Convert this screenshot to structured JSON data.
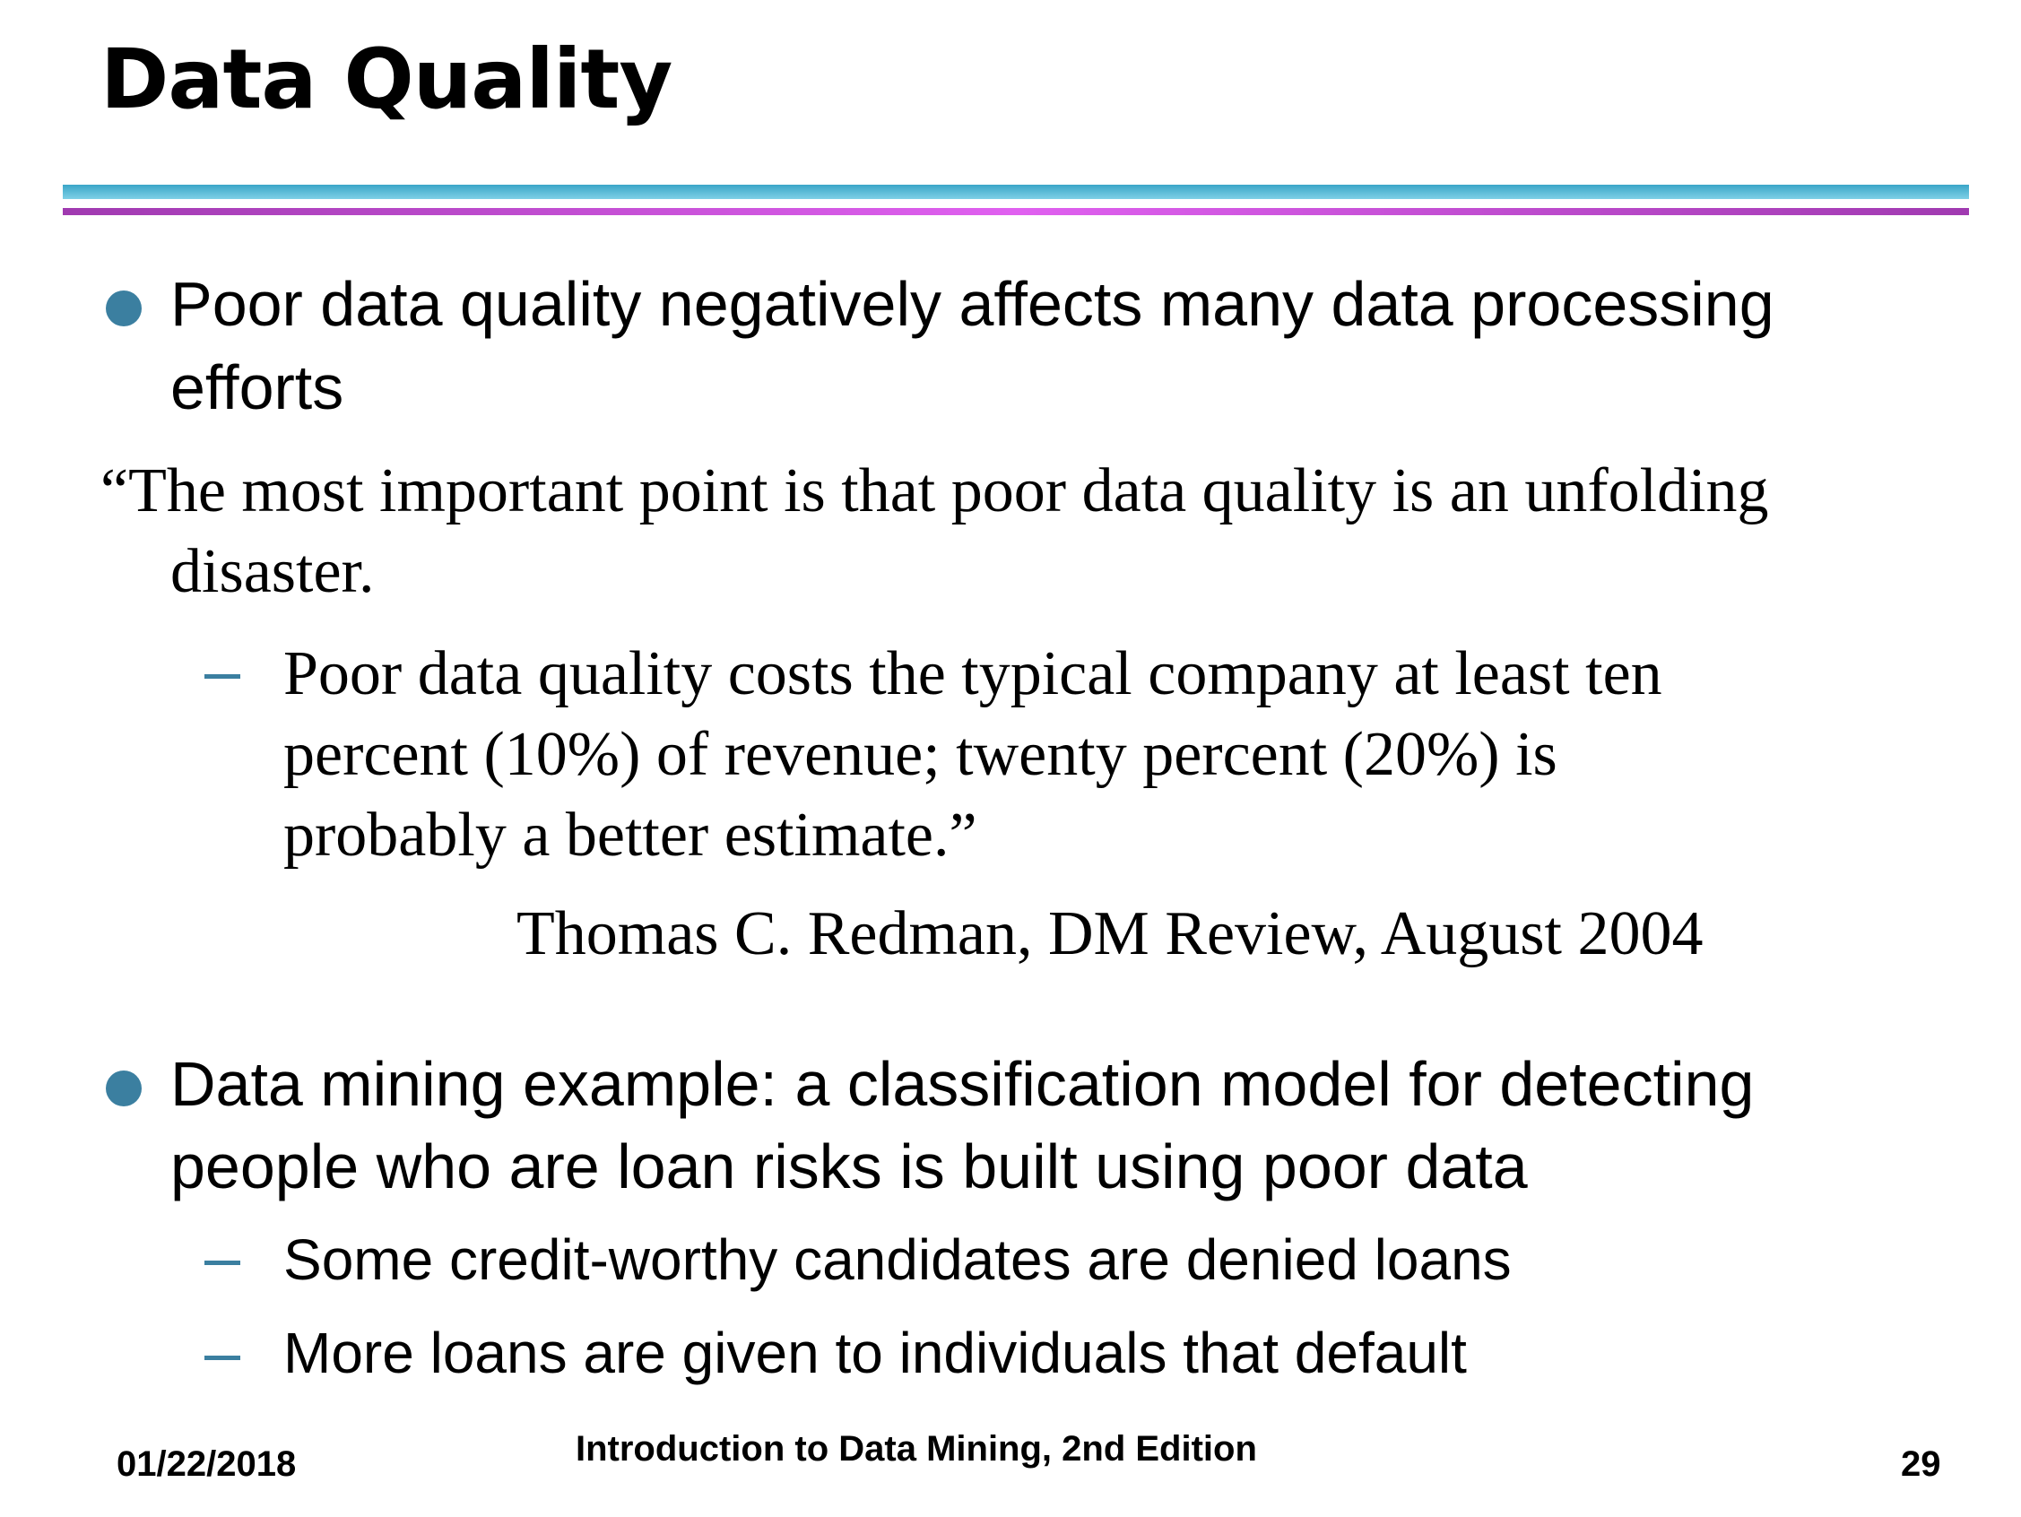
{
  "title": "Data Quality",
  "bullet1": {
    "line1": "Poor data quality negatively affects many data processing",
    "line2": "efforts"
  },
  "quote": {
    "line1": "“The most important point is that poor data quality is an unfolding",
    "line2": "disaster.",
    "sub": {
      "line1": "Poor data quality costs the typical company at least ten",
      "line2": "percent (10%) of revenue; twenty percent (20%) is",
      "line3": "probably a better estimate.”"
    },
    "attribution": "Thomas C. Redman, DM Review, August 2004"
  },
  "bullet2": {
    "line1": "Data mining example: a classification model for detecting",
    "line2": "people who are loan risks is built using poor data",
    "sub1": "Some credit-worthy candidates are denied loans",
    "sub2": "More loans are given to individuals that default"
  },
  "footer": {
    "date": "01/22/2018",
    "course": "Introduction to Data Mining, 2nd Edition",
    "page": "29"
  }
}
